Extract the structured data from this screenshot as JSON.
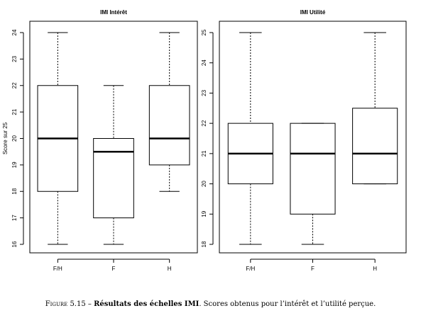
{
  "chart_data": [
    {
      "type": "box",
      "title": "IMI Intérêt",
      "ylabel": "Score sur 25",
      "ylim": [
        16,
        24
      ],
      "yticks": [
        "16",
        "17",
        "18",
        "19",
        "20",
        "21",
        "22",
        "23",
        "24"
      ],
      "categories": [
        "F/H",
        "F",
        "H"
      ],
      "boxes": [
        {
          "whisker_low": 16,
          "q1": 18,
          "median": 20,
          "q3": 22,
          "whisker_high": 24
        },
        {
          "whisker_low": 16,
          "q1": 17,
          "median": 19.5,
          "q3": 20,
          "whisker_high": 22
        },
        {
          "whisker_low": 18,
          "q1": 19,
          "median": 20,
          "q3": 22,
          "whisker_high": 24
        }
      ]
    },
    {
      "type": "box",
      "title": "IMI Utilité",
      "ylabel": "",
      "ylim": [
        18,
        25
      ],
      "yticks": [
        "18",
        "19",
        "20",
        "21",
        "22",
        "23",
        "24",
        "25"
      ],
      "categories": [
        "F/H",
        "F",
        "H"
      ],
      "boxes": [
        {
          "whisker_low": 18,
          "q1": 20,
          "median": 21,
          "q3": 22,
          "whisker_high": 25
        },
        {
          "whisker_low": 18,
          "q1": 19,
          "median": 21,
          "q3": 22,
          "whisker_high": 22
        },
        {
          "whisker_low": 20,
          "q1": 20,
          "median": 21,
          "q3": 22.5,
          "whisker_high": 25
        }
      ]
    }
  ],
  "caption": {
    "label": "Figure 5.15 – ",
    "bold": "Résultats des échelles IMI",
    "text": ". Scores obtenus pour l’intérêt et l’utilité perçue."
  }
}
